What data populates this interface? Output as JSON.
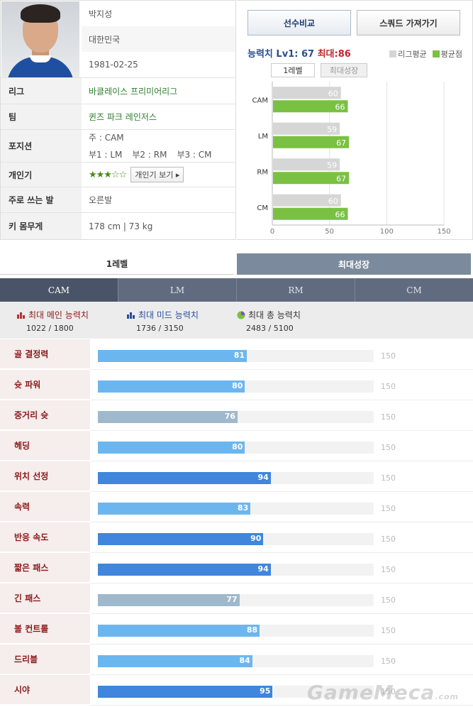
{
  "profile": {
    "name": "박지성",
    "country": "대한민국",
    "birthdate": "1981-02-25",
    "league_label": "리그",
    "league": "바클레이스 프리미어리그",
    "team_label": "팀",
    "team": "퀸즈 파크 레인저스",
    "position_label": "포지션",
    "position_main": "주 : CAM",
    "position_sub1": "부1 : LM",
    "position_sub2": "부2 : RM",
    "position_sub3": "부3 : CM",
    "skill_label": "개인기",
    "skill_stars": "★★★☆☆",
    "skill_stars_value": 3,
    "skill_button": "개인기 보기 ▸",
    "foot_label": "주로 쓰는 발",
    "foot": "오른발",
    "body_label": "키 몸무게",
    "body": "178 cm | 73 kg"
  },
  "actions": {
    "compare": "선수비교",
    "squad": "스쿼드 가져가기"
  },
  "ability": {
    "title_prefix": "능력치",
    "lv1": "Lv1: 67",
    "max": "최대:86",
    "legend_league": "리그평균",
    "legend_avg": "평균점",
    "color_league": "#d6d6d6",
    "color_avg": "#7ac143",
    "tab_level1": "1레벨",
    "tab_max": "최대성장"
  },
  "chart_data": {
    "type": "bar",
    "orientation": "horizontal",
    "categories": [
      "CAM",
      "LM",
      "RM",
      "CM"
    ],
    "series": [
      {
        "name": "리그평균",
        "values": [
          60,
          59,
          59,
          60
        ],
        "color": "#d6d6d6"
      },
      {
        "name": "평균점",
        "values": [
          66,
          67,
          67,
          66
        ],
        "color": "#7ac143"
      }
    ],
    "xlim": [
      0,
      150
    ],
    "xticks": [
      "0",
      "50",
      "100",
      "150"
    ],
    "grid": true
  },
  "level_tabs": [
    "1레벨",
    "최대성장"
  ],
  "position_tabs": [
    "CAM",
    "LM",
    "RM",
    "CM"
  ],
  "totals": [
    {
      "label": "최대 메인 능력치",
      "value": "1022 / 1800",
      "color": "#8b1a1a",
      "icon": "bar-chart-red-icon"
    },
    {
      "label": "최대 미드 능력치",
      "value": "1736 / 3150",
      "color": "#2b4c9c",
      "icon": "bar-chart-blue-icon"
    },
    {
      "label": "최대 총 능력치",
      "value": "2483 / 5100",
      "color": "#333333",
      "icon": "pie-chart-icon"
    }
  ],
  "stats": [
    {
      "name": "골 결정력",
      "value": 81,
      "max": "150",
      "color": "#6cb6f0"
    },
    {
      "name": "슛 파워",
      "value": 80,
      "max": "150",
      "color": "#6cb6f0"
    },
    {
      "name": "중거리 슛",
      "value": 76,
      "max": "150",
      "color": "#9fb8cc"
    },
    {
      "name": "헤딩",
      "value": 80,
      "max": "150",
      "color": "#6cb6f0"
    },
    {
      "name": "위치 선정",
      "value": 94,
      "max": "150",
      "color": "#3f86dc"
    },
    {
      "name": "속력",
      "value": 83,
      "max": "150",
      "color": "#6cb6f0"
    },
    {
      "name": "반응 속도",
      "value": 90,
      "max": "150",
      "color": "#3f86dc"
    },
    {
      "name": "짧은 패스",
      "value": 94,
      "max": "150",
      "color": "#3f86dc"
    },
    {
      "name": "긴 패스",
      "value": 77,
      "max": "150",
      "color": "#9fb8cc"
    },
    {
      "name": "볼 컨트롤",
      "value": 88,
      "max": "150",
      "color": "#6cb6f0"
    },
    {
      "name": "드리블",
      "value": 84,
      "max": "150",
      "color": "#6cb6f0"
    },
    {
      "name": "시야",
      "value": 95,
      "max": "150",
      "color": "#3f86dc"
    }
  ],
  "watermark": {
    "text": "GameMeca",
    "suffix": ".com"
  }
}
